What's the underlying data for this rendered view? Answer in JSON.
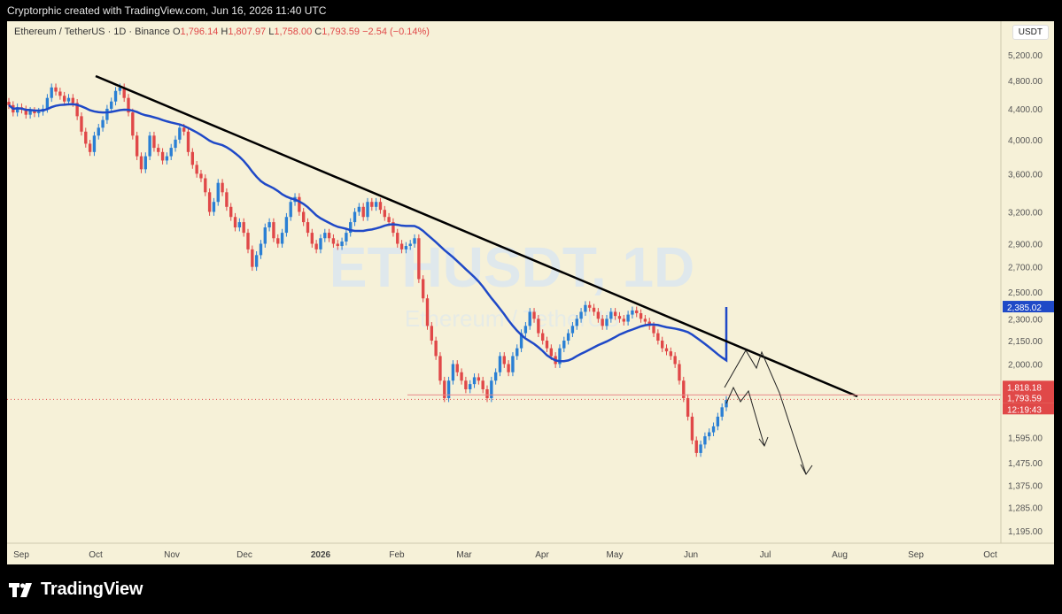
{
  "header": {
    "credit": "Cryptorphic created with TradingView.com, Jun 16, 2026 11:40 UTC"
  },
  "legend": {
    "symbol": "Ethereum / TetherUS · 1D · Binance",
    "o_label": "O",
    "o": "1,796.14",
    "h_label": "H",
    "h": "1,807.97",
    "l_label": "L",
    "l": "1,758.00",
    "c_label": "C",
    "c": "1,793.59",
    "change": "−2.54 (−0.14%)"
  },
  "currency_badge": "USDT",
  "watermark": {
    "symbol": "ETHUSDT, 1D",
    "name": "Ethereum / TetherUS"
  },
  "footer": {
    "brand": "TradingView"
  },
  "colors": {
    "background": "#f6f1d8",
    "up": "#2a7fd4",
    "down": "#e04848",
    "ma": "#1f49c7",
    "trendline": "#000000"
  },
  "chart_data": {
    "type": "candlestick",
    "title": "Ethereum / TetherUS · 1D · Binance",
    "x_tick_labels": [
      "Sep",
      "Oct",
      "Nov",
      "Dec",
      "2026",
      "Feb",
      "Mar",
      "Apr",
      "May",
      "Jun",
      "Jul",
      "Aug",
      "Sep",
      "Oct"
    ],
    "y_tick_labels": [
      "5,200.00",
      "4,800.00",
      "4,400.00",
      "4,000.00",
      "3,600.00",
      "3,200.00",
      "2,900.00",
      "2,700.00",
      "2,500.00",
      "2,300.00",
      "2,150.00",
      "2,000.00",
      "1,595.00",
      "1,475.00",
      "1,375.00",
      "1,285.00",
      "1,195.00"
    ],
    "y_scale": "log",
    "price_range": [
      1150,
      5400
    ],
    "last_price": {
      "value": "1,793.59",
      "countdown": "12:19:43"
    },
    "horizontal_line": {
      "value": "1,818.18"
    },
    "ma_last": {
      "value": "2,385.02"
    },
    "closes": [
      4450,
      4350,
      4420,
      4390,
      4320,
      4370,
      4340,
      4360,
      4400,
      4550,
      4700,
      4640,
      4580,
      4500,
      4550,
      4480,
      4300,
      4100,
      3950,
      3850,
      4050,
      4150,
      4250,
      4400,
      4500,
      4650,
      4700,
      4550,
      4350,
      4050,
      3800,
      3650,
      3800,
      4050,
      3900,
      3850,
      3750,
      3800,
      3900,
      4000,
      4150,
      4100,
      3850,
      3700,
      3600,
      3550,
      3400,
      3200,
      3300,
      3500,
      3400,
      3250,
      3150,
      3050,
      3100,
      3000,
      2850,
      2700,
      2800,
      2900,
      3050,
      3100,
      2950,
      2900,
      3000,
      3150,
      3300,
      3350,
      3200,
      3100,
      3000,
      2900,
      2850,
      2950,
      3000,
      2950,
      2900,
      2880,
      2920,
      3000,
      3100,
      3200,
      3250,
      3150,
      3300,
      3250,
      3300,
      3220,
      3150,
      3100,
      3000,
      2900,
      2850,
      2880,
      2900,
      2950,
      2600,
      2450,
      2250,
      2150,
      2050,
      1900,
      1800,
      1900,
      2000,
      1950,
      1900,
      1850,
      1880,
      1920,
      1900,
      1850,
      1800,
      1900,
      1950,
      2050,
      2000,
      1950,
      2050,
      2100,
      2200,
      2250,
      2350,
      2300,
      2200,
      2150,
      2100,
      2050,
      2000,
      2100,
      2150,
      2200,
      2250,
      2300,
      2350,
      2400,
      2380,
      2350,
      2300,
      2250,
      2300,
      2350,
      2320,
      2300,
      2280,
      2330,
      2360,
      2340,
      2300,
      2280,
      2250,
      2200,
      2150,
      2100,
      2080,
      2050,
      2000,
      1900,
      1800,
      1700,
      1580,
      1520,
      1560,
      1600,
      1620,
      1650,
      1700,
      1750,
      1790
    ]
  }
}
